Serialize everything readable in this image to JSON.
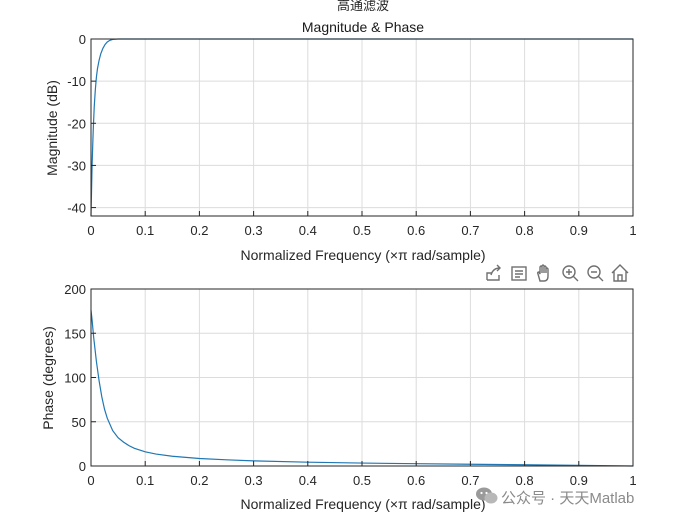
{
  "figure": {
    "suptitle": "高通滤波",
    "watermark": "公众号 · 天天Matlab",
    "line_color": "#1f77b4"
  },
  "toolbar": {
    "icons": [
      "export-icon",
      "datatip-icon",
      "pan-hand-icon",
      "zoom-in-icon",
      "zoom-out-icon",
      "home-icon"
    ]
  },
  "chart_data": [
    {
      "type": "line",
      "title": "Magnitude & Phase",
      "xlabel": "Normalized Frequency  (×π rad/sample)",
      "ylabel": "Magnitude (dB)",
      "xlim": [
        0,
        1
      ],
      "ylim": [
        -42,
        0
      ],
      "xticks": [
        0,
        0.1,
        0.2,
        0.3,
        0.4,
        0.5,
        0.6,
        0.7,
        0.8,
        0.9,
        1
      ],
      "xtick_labels": [
        "0",
        "0.1",
        "0.2",
        "0.3",
        "0.4",
        "0.5",
        "0.6",
        "0.7",
        "0.8",
        "0.9",
        "1"
      ],
      "yticks": [
        -40,
        -30,
        -20,
        -10,
        0
      ],
      "ytick_labels": [
        "-40",
        "-30",
        "-20",
        "-10",
        "0"
      ],
      "grid": true,
      "series": [
        {
          "x": [
            0,
            0.002,
            0.004,
            0.006,
            0.008,
            0.01,
            0.012,
            0.015,
            0.018,
            0.022,
            0.026,
            0.03,
            0.035,
            0.04,
            0.05,
            0.06,
            0.08,
            0.1,
            0.2,
            0.3,
            0.4,
            0.5,
            0.6,
            0.7,
            0.8,
            0.9,
            1
          ],
          "y": [
            -42,
            -30,
            -22,
            -16,
            -12,
            -9,
            -7,
            -5,
            -3.5,
            -2.2,
            -1.3,
            -0.7,
            -0.3,
            -0.1,
            0,
            0,
            0,
            0,
            0,
            0,
            0,
            0,
            0,
            0,
            0,
            0,
            0
          ]
        }
      ]
    },
    {
      "type": "line",
      "title": "",
      "xlabel": "Normalized Frequency  (×π rad/sample)",
      "ylabel": "Phase (degrees)",
      "xlim": [
        0,
        1
      ],
      "ylim": [
        0,
        200
      ],
      "xticks": [
        0,
        0.1,
        0.2,
        0.3,
        0.4,
        0.5,
        0.6,
        0.7,
        0.8,
        0.9,
        1
      ],
      "xtick_labels": [
        "0",
        "0.1",
        "0.2",
        "0.3",
        "0.4",
        "0.5",
        "0.6",
        "0.7",
        "0.8",
        "0.9",
        "1"
      ],
      "yticks": [
        0,
        50,
        100,
        150,
        200
      ],
      "ytick_labels": [
        "0",
        "50",
        "100",
        "150",
        "200"
      ],
      "grid": true,
      "series": [
        {
          "x": [
            0,
            0.002,
            0.005,
            0.01,
            0.015,
            0.02,
            0.025,
            0.03,
            0.04,
            0.05,
            0.06,
            0.07,
            0.08,
            0.1,
            0.12,
            0.15,
            0.2,
            0.25,
            0.3,
            0.4,
            0.5,
            0.6,
            0.7,
            0.8,
            0.9,
            1
          ],
          "y": [
            176,
            165,
            145,
            118,
            96,
            78,
            64,
            54,
            40,
            32,
            27,
            23,
            20,
            16,
            13.5,
            11,
            8.5,
            7,
            5.8,
            4.3,
            3.3,
            2.6,
            2,
            1.4,
            0.8,
            0
          ]
        }
      ]
    }
  ]
}
